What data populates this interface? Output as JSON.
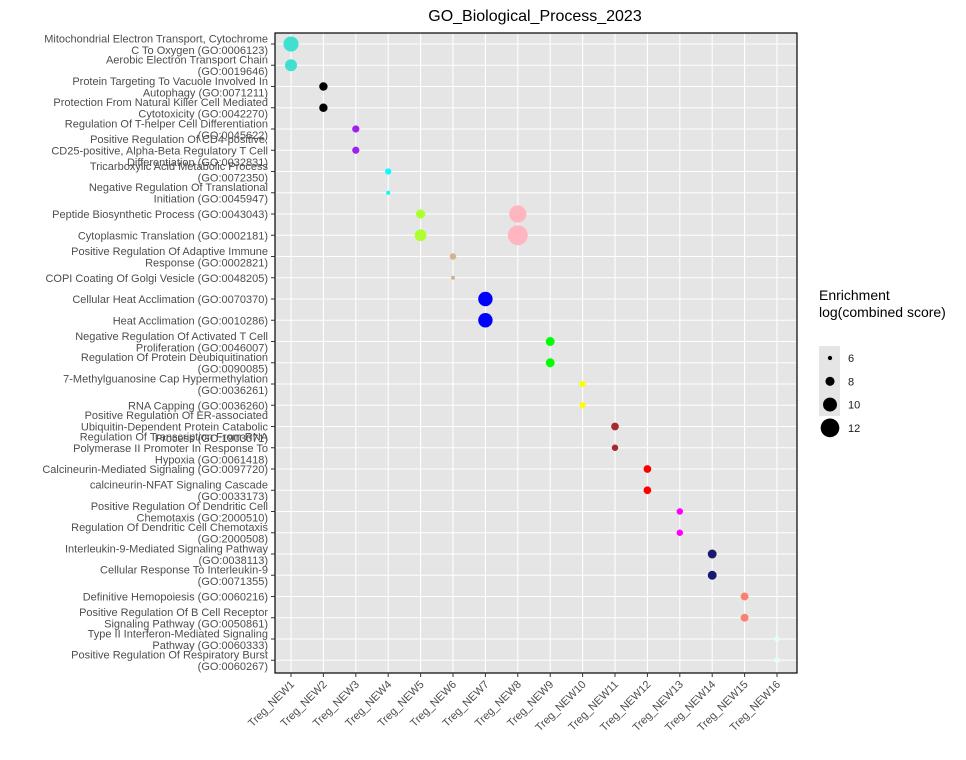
{
  "chart_data": {
    "type": "scatter",
    "title": "GO_Biological_Process_2023",
    "xlabel": "",
    "ylabel": "",
    "categories": [
      "Treg_NEW1",
      "Treg_NEW2",
      "Treg_NEW3",
      "Treg_NEW4",
      "Treg_NEW5",
      "Treg_NEW6",
      "Treg_NEW7",
      "Treg_NEW8",
      "Treg_NEW9",
      "Treg_NEW10",
      "Treg_NEW11",
      "Treg_NEW12",
      "Treg_NEW13",
      "Treg_NEW14",
      "Treg_NEW15",
      "Treg_NEW16"
    ],
    "terms": [
      [
        "Mitochondrial Electron Transport, Cytochrome",
        "C To Oxygen (GO:0006123)"
      ],
      [
        "Aerobic Electron Transport Chain",
        "(GO:0019646)"
      ],
      [
        "Protein Targeting To Vacuole Involved In",
        "Autophagy (GO:0071211)"
      ],
      [
        "Protection From Natural Killer Cell Mediated",
        "Cytotoxicity (GO:0042270)"
      ],
      [
        "Regulation Of T-helper Cell Differentiation",
        "(GO:0045622)"
      ],
      [
        "Positive Regulation Of CD4-positive,",
        "CD25-positive, Alpha-Beta Regulatory T Cell",
        "Differentiation (GO:0032831)"
      ],
      [
        "Tricarboxylic Acid Metabolic Process",
        "(GO:0072350)"
      ],
      [
        "Negative Regulation Of Translational",
        "Initiation (GO:0045947)"
      ],
      [
        "Peptide Biosynthetic Process (GO:0043043)"
      ],
      [
        "Cytoplasmic Translation (GO:0002181)"
      ],
      [
        "Positive Regulation Of Adaptive Immune",
        "Response (GO:0002821)"
      ],
      [
        "COPI Coating Of Golgi Vesicle (GO:0048205)"
      ],
      [
        "Cellular Heat Acclimation (GO:0070370)"
      ],
      [
        "Heat Acclimation (GO:0010286)"
      ],
      [
        "Negative Regulation Of Activated T Cell",
        "Proliferation (GO:0046007)"
      ],
      [
        "Regulation Of Protein Deubiquitination",
        "(GO:0090085)"
      ],
      [
        "7-Methylguanosine Cap Hypermethylation",
        "(GO:0036261)"
      ],
      [
        "RNA Capping (GO:0036260)"
      ],
      [
        "Positive Regulation Of ER-associated",
        "Ubiquitin-Dependent Protein Catabolic",
        "Process (GO:1903071)"
      ],
      [
        "Regulation Of Transcription From RNA",
        "Polymerase II Promoter In Response To",
        "Hypoxia (GO:0061418)"
      ],
      [
        "Calcineurin-Mediated Signaling (GO:0097720)"
      ],
      [
        "calcineurin-NFAT Signaling Cascade",
        "(GO:0033173)"
      ],
      [
        "Positive Regulation Of Dendritic Cell",
        "Chemotaxis (GO:2000510)"
      ],
      [
        "Regulation Of Dendritic Cell Chemotaxis",
        "(GO:2000508)"
      ],
      [
        "Interleukin-9-Mediated Signaling Pathway",
        "(GO:0038113)"
      ],
      [
        "Cellular Response To Interleukin-9",
        "(GO:0071355)"
      ],
      [
        "Definitive Hemopoiesis (GO:0060216)"
      ],
      [
        "Positive Regulation Of B Cell Receptor",
        "Signaling Pathway (GO:0050861)"
      ],
      [
        "Type II Interferon-Mediated Signaling",
        "Pathway (GO:0060333)"
      ],
      [
        "Positive Regulation Of Respiratory Burst",
        "(GO:0060267)"
      ]
    ],
    "points": [
      {
        "cluster": 1,
        "term": 1,
        "score": 10.5,
        "color": "#40E0D0"
      },
      {
        "cluster": 1,
        "term": 2,
        "score": 9.2,
        "color": "#40E0D0"
      },
      {
        "cluster": 2,
        "term": 3,
        "score": 7.7,
        "color": "#000000"
      },
      {
        "cluster": 2,
        "term": 4,
        "score": 7.7,
        "color": "#000000"
      },
      {
        "cluster": 3,
        "term": 5,
        "score": 7.2,
        "color": "#A020F0"
      },
      {
        "cluster": 3,
        "term": 6,
        "score": 7.2,
        "color": "#A020F0"
      },
      {
        "cluster": 4,
        "term": 7,
        "score": 6.8,
        "color": "#00FFFF"
      },
      {
        "cluster": 4,
        "term": 8,
        "score": 5.3,
        "color": "#00FFFF"
      },
      {
        "cluster": 5,
        "term": 9,
        "score": 8.1,
        "color": "#ADFF2F"
      },
      {
        "cluster": 5,
        "term": 10,
        "score": 9.1,
        "color": "#ADFF2F"
      },
      {
        "cluster": 8,
        "term": 9,
        "score": 11.4,
        "color": "#FFB6C1"
      },
      {
        "cluster": 8,
        "term": 10,
        "score": 12.5,
        "color": "#FFB6C1"
      },
      {
        "cluster": 6,
        "term": 11,
        "score": 6.9,
        "color": "#D2B48C"
      },
      {
        "cluster": 6,
        "term": 12,
        "score": 4.8,
        "color": "#D2B48C"
      },
      {
        "cluster": 7,
        "term": 13,
        "score": 10.2,
        "color": "#0000FF"
      },
      {
        "cluster": 7,
        "term": 14,
        "score": 10.2,
        "color": "#0000FF"
      },
      {
        "cluster": 9,
        "term": 15,
        "score": 7.9,
        "color": "#00FF00"
      },
      {
        "cluster": 9,
        "term": 16,
        "score": 7.9,
        "color": "#00FF00"
      },
      {
        "cluster": 10,
        "term": 17,
        "score": 6.8,
        "color": "#FFFF00"
      },
      {
        "cluster": 10,
        "term": 18,
        "score": 6.8,
        "color": "#FFFF00"
      },
      {
        "cluster": 11,
        "term": 19,
        "score": 7.4,
        "color": "#A52A2A"
      },
      {
        "cluster": 11,
        "term": 20,
        "score": 6.9,
        "color": "#A52A2A"
      },
      {
        "cluster": 12,
        "term": 21,
        "score": 7.4,
        "color": "#FF0000"
      },
      {
        "cluster": 12,
        "term": 22,
        "score": 7.4,
        "color": "#FF0000"
      },
      {
        "cluster": 13,
        "term": 23,
        "score": 6.9,
        "color": "#FF00FF"
      },
      {
        "cluster": 13,
        "term": 24,
        "score": 6.9,
        "color": "#FF00FF"
      },
      {
        "cluster": 14,
        "term": 25,
        "score": 7.9,
        "color": "#191970"
      },
      {
        "cluster": 14,
        "term": 26,
        "score": 7.9,
        "color": "#191970"
      },
      {
        "cluster": 15,
        "term": 27,
        "score": 7.5,
        "color": "#FA8072"
      },
      {
        "cluster": 15,
        "term": 28,
        "score": 7.5,
        "color": "#FA8072"
      },
      {
        "cluster": 16,
        "term": 29,
        "score": 6.6,
        "color": "#E0FFFF"
      },
      {
        "cluster": 16,
        "term": 30,
        "score": 6.6,
        "color": "#E0FFFF"
      }
    ],
    "size_legend": {
      "title": [
        "Enrichment",
        "log(combined score)"
      ],
      "values": [
        6,
        8,
        10,
        12
      ]
    },
    "colors": {
      "panel": "#E5E5E5",
      "grid": "#FFFFFF",
      "border": "#000000"
    },
    "grid": true,
    "legend_position": "right"
  }
}
